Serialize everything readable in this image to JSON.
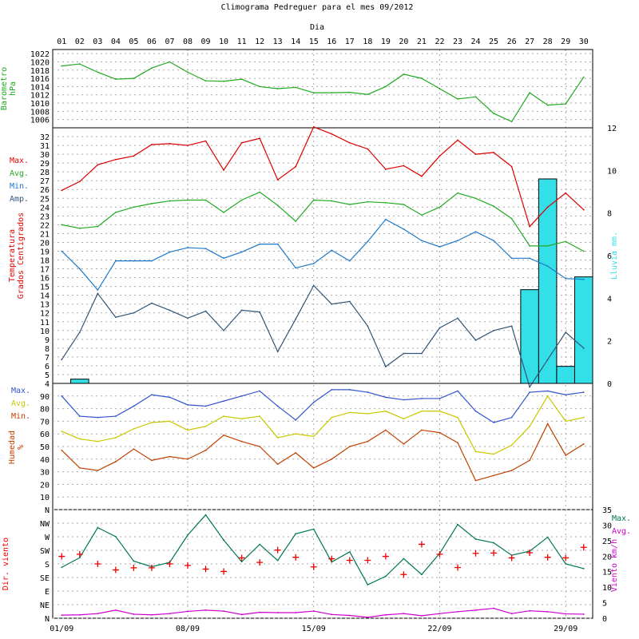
{
  "title": "Climograma Pedreguer para el mes 09/2012",
  "dia_label": "Dia",
  "days": [
    "01",
    "02",
    "03",
    "04",
    "05",
    "06",
    "07",
    "08",
    "09",
    "10",
    "11",
    "12",
    "13",
    "14",
    "15",
    "16",
    "17",
    "18",
    "19",
    "20",
    "21",
    "22",
    "23",
    "24",
    "25",
    "26",
    "27",
    "28",
    "29",
    "30"
  ],
  "bottom_dates": [
    "01/09",
    "08/09",
    "15/09",
    "22/09",
    "29/09"
  ],
  "colors": {
    "pressure": "#22aa22",
    "max": "#dd0000",
    "avg": "#22aa22",
    "min": "#1e78c8",
    "amp": "#335577",
    "rain": "#33e0e8",
    "hum_max": "#3355cc",
    "hum_avg": "#c8c800",
    "hum_min": "#c04000",
    "wind_max": "#007755",
    "wind_avg": "#cc00cc",
    "wind_dir": "#ee0000"
  },
  "labels": {
    "pressure_axis": [
      "Barometro",
      "hPa"
    ],
    "temp_axis": [
      "Temperatura",
      "Grados Centigrados"
    ],
    "rain_axis": "Lluvia mm.",
    "hum_axis": [
      "Humedad",
      "%"
    ],
    "wind_dir_axis": "Dir. viento",
    "wind_speed_axis": "Viento km/h",
    "temp_legend": [
      "Max.",
      "Avg.",
      "Min.",
      "Amp."
    ],
    "hum_legend": [
      "Max.",
      "Avg.",
      "Min."
    ],
    "wind_legend": [
      "Max.",
      "Avg."
    ]
  },
  "chart_data": [
    {
      "type": "line",
      "title": "Barometro hPa",
      "ylabel": "Barometro hPa",
      "ylim": [
        1004,
        1023
      ],
      "yticks": [
        1006,
        1008,
        1010,
        1012,
        1014,
        1016,
        1018,
        1020,
        1022
      ],
      "x": [
        "01",
        "02",
        "03",
        "04",
        "05",
        "06",
        "07",
        "08",
        "09",
        "10",
        "11",
        "12",
        "13",
        "14",
        "15",
        "16",
        "17",
        "18",
        "19",
        "20",
        "21",
        "22",
        "23",
        "24",
        "25",
        "26",
        "27",
        "28",
        "29",
        "30"
      ],
      "series": [
        {
          "name": "Barometro",
          "values": [
            1019.0,
            1019.5,
            1017.5,
            1015.8,
            1016.0,
            1018.5,
            1020.0,
            1017.5,
            1015.4,
            1015.3,
            1015.8,
            1014.0,
            1013.5,
            1013.8,
            1012.5,
            1012.5,
            1012.6,
            1012.1,
            1014.0,
            1017.0,
            1016.0,
            1013.5,
            1011.0,
            1011.5,
            1007.5,
            1005.5,
            1012.5,
            1009.5,
            1009.8,
            1016.3
          ]
        }
      ]
    },
    {
      "type": "line",
      "ylabel": "Temperatura Grados Centigrados",
      "ylim": [
        4,
        33
      ],
      "yticks": [
        4,
        5,
        6,
        7,
        8,
        9,
        10,
        11,
        12,
        13,
        14,
        15,
        16,
        17,
        18,
        19,
        20,
        21,
        22,
        23,
        24,
        25,
        26,
        27,
        28,
        29,
        30,
        31,
        32
      ],
      "x": [
        "01",
        "02",
        "03",
        "04",
        "05",
        "06",
        "07",
        "08",
        "09",
        "10",
        "11",
        "12",
        "13",
        "14",
        "15",
        "16",
        "17",
        "18",
        "19",
        "20",
        "21",
        "22",
        "23",
        "24",
        "25",
        "26",
        "27",
        "28",
        "29",
        "30"
      ],
      "series": [
        {
          "name": "Max.",
          "values": [
            25.9,
            26.9,
            28.8,
            29.4,
            29.8,
            31.1,
            31.2,
            31.0,
            31.5,
            28.2,
            31.3,
            31.8,
            27.1,
            28.6,
            33.1,
            32.3,
            31.3,
            30.6,
            28.3,
            28.7,
            27.5,
            29.8,
            31.6,
            30.0,
            30.2,
            28.6,
            21.8,
            24.0,
            25.6,
            23.7
          ]
        },
        {
          "name": "Avg.",
          "values": [
            22.0,
            21.6,
            21.8,
            23.4,
            24.0,
            24.4,
            24.7,
            24.8,
            24.8,
            23.4,
            24.8,
            25.7,
            24.2,
            22.4,
            24.8,
            24.7,
            24.3,
            24.6,
            24.5,
            24.3,
            23.1,
            24.0,
            25.6,
            25.0,
            24.1,
            22.7,
            19.6,
            19.6,
            20.1,
            19.0
          ]
        },
        {
          "name": "Min.",
          "values": [
            19.0,
            17.0,
            14.6,
            17.9,
            17.9,
            17.9,
            18.9,
            19.4,
            19.3,
            18.2,
            18.9,
            19.8,
            19.8,
            17.1,
            17.6,
            19.1,
            17.9,
            20.1,
            22.6,
            21.5,
            20.2,
            19.5,
            20.2,
            21.2,
            20.2,
            18.2,
            18.2,
            17.3,
            15.9,
            15.8
          ]
        },
        {
          "name": "Amp.",
          "values": [
            6.7,
            9.8,
            14.2,
            11.5,
            12.0,
            13.1,
            12.3,
            11.4,
            12.2,
            10.0,
            12.3,
            12.1,
            7.6,
            11.3,
            15.1,
            13.0,
            13.3,
            10.5,
            5.9,
            7.4,
            7.4,
            10.3,
            11.4,
            8.9,
            10.0,
            10.5,
            3.6,
            6.7,
            9.8,
            8.0
          ]
        }
      ]
    },
    {
      "type": "bar",
      "ylabel": "Lluvia mm.",
      "ylim": [
        0,
        12
      ],
      "yticks": [
        0,
        2,
        4,
        6,
        8,
        10,
        12
      ],
      "categories": [
        "01",
        "02",
        "03",
        "04",
        "05",
        "06",
        "07",
        "08",
        "09",
        "10",
        "11",
        "12",
        "13",
        "14",
        "15",
        "16",
        "17",
        "18",
        "19",
        "20",
        "21",
        "22",
        "23",
        "24",
        "25",
        "26",
        "27",
        "28",
        "29",
        "30"
      ],
      "values": [
        0,
        0.2,
        0,
        0,
        0,
        0,
        0,
        0,
        0,
        0,
        0,
        0,
        0,
        0,
        0,
        0,
        0,
        0,
        0,
        0,
        0,
        0,
        0,
        0,
        0,
        0,
        4.4,
        9.6,
        0.8,
        5.0
      ]
    },
    {
      "type": "line",
      "ylabel": "Humedad %",
      "ylim": [
        0,
        100
      ],
      "yticks": [
        10,
        20,
        30,
        40,
        50,
        60,
        70,
        80,
        90
      ],
      "x": [
        "01",
        "02",
        "03",
        "04",
        "05",
        "06",
        "07",
        "08",
        "09",
        "10",
        "11",
        "12",
        "13",
        "14",
        "15",
        "16",
        "17",
        "18",
        "19",
        "20",
        "21",
        "22",
        "23",
        "24",
        "25",
        "26",
        "27",
        "28",
        "29",
        "30"
      ],
      "series": [
        {
          "name": "Max.",
          "values": [
            90,
            74,
            73,
            74,
            82,
            91,
            89,
            83,
            82,
            86,
            90,
            94,
            82,
            71,
            85,
            95,
            95,
            93,
            89,
            87,
            88,
            88,
            94,
            78,
            69,
            73,
            93,
            94,
            91,
            93
          ]
        },
        {
          "name": "Avg.",
          "values": [
            62,
            56,
            54,
            57,
            64,
            69,
            70,
            63,
            66,
            74,
            72,
            74,
            57,
            60,
            58,
            73,
            77,
            76,
            78,
            72,
            78,
            78,
            73,
            46,
            44,
            51,
            66,
            90,
            70,
            73
          ]
        },
        {
          "name": "Min.",
          "values": [
            47,
            33,
            31,
            38,
            48,
            39,
            42,
            40,
            47,
            59,
            54,
            50,
            36,
            45,
            33,
            40,
            50,
            54,
            63,
            52,
            63,
            61,
            53,
            23,
            27,
            31,
            39,
            68,
            43,
            52
          ]
        }
      ]
    },
    {
      "type": "line",
      "ylabel": "Viento km/h",
      "ylim": [
        0,
        35
      ],
      "yticks": [
        0,
        5,
        10,
        15,
        20,
        25,
        30,
        35
      ],
      "x": [
        "01",
        "02",
        "03",
        "04",
        "05",
        "06",
        "07",
        "08",
        "09",
        "10",
        "11",
        "12",
        "13",
        "14",
        "15",
        "16",
        "17",
        "18",
        "19",
        "20",
        "21",
        "22",
        "23",
        "24",
        "25",
        "26",
        "27",
        "28",
        "29",
        "30"
      ],
      "series": [
        {
          "name": "Max.",
          "values": [
            16.4,
            19.5,
            29.2,
            26.3,
            18.4,
            16.6,
            18.0,
            26.8,
            33.3,
            25.2,
            18.2,
            23.8,
            18.6,
            27.2,
            28.7,
            18.1,
            21.4,
            10.8,
            13.5,
            19.2,
            14.1,
            20.9,
            30.2,
            25.5,
            24.3,
            20.3,
            21.6,
            26.1,
            17.5,
            16.0
          ]
        },
        {
          "name": "Avg.",
          "values": [
            1.0,
            1.1,
            1.5,
            2.6,
            1.3,
            1.1,
            1.5,
            2.2,
            2.6,
            2.3,
            1.2,
            1.9,
            1.8,
            1.8,
            2.3,
            1.2,
            0.9,
            0.3,
            1.1,
            1.5,
            0.8,
            1.5,
            2.1,
            2.6,
            3.2,
            1.5,
            2.4,
            2.1,
            1.4,
            1.3
          ]
        }
      ]
    },
    {
      "type": "scatter",
      "ylabel": "Dir. viento",
      "yticks": [
        "N",
        "NE",
        "E",
        "SE",
        "S",
        "SW",
        "W",
        "NW",
        "N"
      ],
      "x": [
        "01",
        "02",
        "03",
        "04",
        "05",
        "06",
        "07",
        "08",
        "09",
        "10",
        "11",
        "12",
        "13",
        "14",
        "15",
        "16",
        "17",
        "18",
        "19",
        "20",
        "21",
        "22",
        "23",
        "24",
        "25",
        "26",
        "27",
        "28",
        "29",
        "30"
      ],
      "series": [
        {
          "name": "Dir. viento",
          "values_deg": [
            205,
            212,
            180,
            160,
            167,
            167,
            180,
            175,
            163,
            155,
            200,
            185,
            226,
            202,
            170,
            197,
            192,
            192,
            205,
            145,
            245,
            212,
            168,
            215,
            216,
            200,
            217,
            202,
            200,
            235
          ]
        }
      ]
    }
  ]
}
